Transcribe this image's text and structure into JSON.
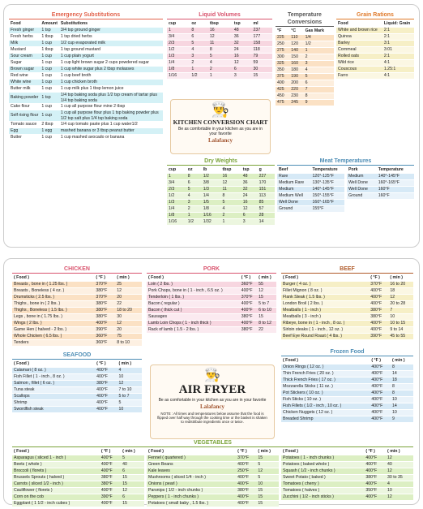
{
  "conversion_chart": {
    "emergency_substitutions": {
      "title": "Emergency Substitutions",
      "columns": [
        "Food",
        "Amount",
        "Substitutions"
      ],
      "rows": [
        [
          "Fresh ginger",
          "1 tsp",
          "3/4 tsp ground ginger"
        ],
        [
          "Fresh herbs",
          "1 tbsp",
          "1 tsp dried herbs"
        ],
        [
          "Milk",
          "1 cup",
          "1/2 cup evaporated milk"
        ],
        [
          "Mustard",
          "1 tbsp",
          "1 tsp ground mustard"
        ],
        [
          "Sour cream",
          "1 cup",
          "1 cup plain yogurt"
        ],
        [
          "Sugar",
          "1 cup",
          "1 cup light brown sugar 2 cups powdered sugar"
        ],
        [
          "Brown sugar",
          "1 cup",
          "1 cup white sugar plus 2 tbsp molasses"
        ],
        [
          "Red wine",
          "1 cup",
          "1 cup beef broth"
        ],
        [
          "White wine",
          "1 cup",
          "1 cup chicken broth"
        ],
        [
          "Butter milk",
          "1 cup",
          "1 cup milk plus 1 tbsp lemon juice"
        ],
        [
          "Baking powder",
          "1 tsp",
          "1/4 tsp baking soda plus 1/2 tsp cream of tartar plus 1/4 tsp baking soda"
        ],
        [
          "Cake flour",
          "1 cup",
          "1 cup all purpose flour mine 2 tbsp"
        ],
        [
          "Self rising flour",
          "1 cup",
          "1 cup all purpose flour plus 1 tsp baking powder plus 1/2 tsp salt plus 1/4 tsp baking soda"
        ],
        [
          "Tomato sauce",
          "2 tbsp",
          "1/4 cup tomato paste plus 1 cup water1/2"
        ],
        [
          "Egg",
          "1 egg",
          "mashed banana or 3 tbsp peanut butter"
        ],
        [
          "Butter",
          "1 cup",
          "1 cup mashed avocado or banana"
        ]
      ]
    },
    "liquid_volumes": {
      "title": "Liquid Volumes",
      "columns": [
        "cup",
        "oz",
        "tbsp",
        "tsp",
        "ml"
      ],
      "rows": [
        [
          "1",
          "8",
          "16",
          "48",
          "237"
        ],
        [
          "3/4",
          "6",
          "12",
          "36",
          "177"
        ],
        [
          "2/3",
          "5",
          "11",
          "32",
          "158"
        ],
        [
          "1/2",
          "4",
          "8",
          "24",
          "118"
        ],
        [
          "1/3",
          "3",
          "5",
          "16",
          "79"
        ],
        [
          "1/4",
          "2",
          "4",
          "12",
          "59"
        ],
        [
          "1/8",
          "1",
          "2",
          "6",
          "30"
        ],
        [
          "1/16",
          "1/2",
          "1",
          "3",
          "15"
        ]
      ]
    },
    "temperature_conversions": {
      "title": "Temperature Conversions",
      "columns": [
        "°F",
        "°C",
        "Gas Mark"
      ],
      "rows": [
        [
          "225",
          "110",
          "1/4"
        ],
        [
          "250",
          "120",
          "1/2"
        ],
        [
          "275",
          "140",
          "1"
        ],
        [
          "300",
          "150",
          "2"
        ],
        [
          "325",
          "160",
          "3"
        ],
        [
          "350",
          "180",
          "4"
        ],
        [
          "375",
          "190",
          "5"
        ],
        [
          "400",
          "200",
          "6"
        ],
        [
          "425",
          "220",
          "7"
        ],
        [
          "450",
          "230",
          "8"
        ],
        [
          "475",
          "245",
          "9"
        ]
      ]
    },
    "grain_rations": {
      "title": "Grain Rations",
      "columns": [
        "Food",
        "Liquid: Grain"
      ],
      "rows": [
        [
          "White and brown rice",
          "2:1"
        ],
        [
          "Quinoa",
          "2:1"
        ],
        [
          "Barley",
          "3:1"
        ],
        [
          "Cornmeal",
          "3:01"
        ],
        [
          "Rolled oats",
          "2:1"
        ],
        [
          "Wild rice",
          "4:1"
        ],
        [
          "Couscous",
          "1.25:1"
        ],
        [
          "Farro",
          "4:1"
        ]
      ]
    },
    "center": {
      "title": "KITCHEN CONVERSION CHART",
      "tagline": "Be as comfortable in your kitchen as you are in your favorite",
      "brand": "Lalafancy"
    },
    "dry_weights": {
      "title": "Dry Weights",
      "columns": [
        "cup",
        "oz",
        "lb",
        "tbsp",
        "tsp",
        "g"
      ],
      "rows": [
        [
          "1",
          "8",
          "1/2",
          "16",
          "48",
          "227"
        ],
        [
          "3/4",
          "6",
          "3/8",
          "12",
          "36",
          "170"
        ],
        [
          "2/3",
          "5",
          "1/3",
          "11",
          "32",
          "151"
        ],
        [
          "1/2",
          "4",
          "1/4",
          "8",
          "24",
          "113"
        ],
        [
          "1/3",
          "3",
          "1/5",
          "5",
          "16",
          "85"
        ],
        [
          "1/4",
          "2",
          "1/8",
          "4",
          "12",
          "57"
        ],
        [
          "1/8",
          "1",
          "1/16",
          "2",
          "6",
          "28"
        ],
        [
          "1/16",
          "1/2",
          "1/32",
          "1",
          "3",
          "14"
        ]
      ]
    },
    "meat_temperatures": {
      "title": "Meat Temperatures",
      "tables": [
        {
          "columns": [
            "Beef",
            "Temperature"
          ],
          "rows": [
            [
              "Rare",
              "120°-125°F"
            ],
            [
              "Medium Rare",
              "130°-135°F"
            ],
            [
              "Medium",
              "140°-145°F"
            ],
            [
              "Medium Well",
              "150°-155°F"
            ],
            [
              "Well Done",
              "160°-165°F"
            ],
            [
              "Ground",
              "155°F"
            ]
          ]
        },
        {
          "columns": [
            "Pork",
            "Temperature"
          ],
          "rows": [
            [
              "Medium",
              "140°-145°F"
            ],
            [
              "Well Done",
              "160°-165°F"
            ],
            [
              "Well Done",
              "160°F"
            ],
            [
              "Ground",
              "160°F"
            ]
          ]
        }
      ]
    }
  },
  "air_fryer": {
    "chicken": {
      "title": "CHICKEN",
      "columns": [
        "( Food )",
        "( °F )",
        "( min )"
      ],
      "rows": [
        [
          "Breasts , bone in ( 1.25 lbs. )",
          "370°F",
          "25"
        ],
        [
          "Breasts , Boneless ( 4 oz. )",
          "380°F",
          "12"
        ],
        [
          "Drumsticks ( 2.5 lbs. )",
          "370°F",
          "20"
        ],
        [
          "Thighs , bone in ( 2 lbs. )",
          "380°F",
          "22"
        ],
        [
          "Thighs , Boneless ( 1.5 lbs. )",
          "380°F",
          "18 to 20"
        ],
        [
          "Legs , bone in ( 1.75 lbs. )",
          "380°F",
          "30"
        ],
        [
          "Wings ( 2 lbs. )",
          "400°F",
          "12"
        ],
        [
          "Game Hen ( halved - 2 lbs. )",
          "390°F",
          "20"
        ],
        [
          "Whole Chicken ( 6.5 lbs. )",
          "360°F",
          "75"
        ],
        [
          "Tenders",
          "360°F",
          "8 to 10"
        ]
      ]
    },
    "pork": {
      "title": "PORK",
      "columns": [
        "( Food )",
        "( °F )",
        "( min )"
      ],
      "rows": [
        [
          "Loin ( 2 lbs. )",
          "360°F",
          "55"
        ],
        [
          "Pork Chops, bone in ( 1 - inch , 6.5 oz. )",
          "400°F",
          "12"
        ],
        [
          "Tenderloin ( 1 lbs. )",
          "370°F",
          "15"
        ],
        [
          "Bacon ( regular )",
          "400°F",
          "5 to 7"
        ],
        [
          "Bacon ( thick cut )",
          "400°F",
          "6 to 10"
        ],
        [
          "Sausages",
          "380°F",
          "15"
        ],
        [
          "Lamb Loin Chops ( 1 - inch thick )",
          "400°F",
          "8 to 12"
        ],
        [
          "Rack of lamb ( 1.5 - 2 lbs. )",
          "380°F",
          "22"
        ]
      ]
    },
    "beef": {
      "title": "BEEF",
      "columns": [
        "( Food )",
        "( °F )",
        "( min )"
      ],
      "rows": [
        [
          "Burger ( 4 oz. )",
          "370°F",
          "16 to 20"
        ],
        [
          "Fillet Mignon ( 8 oz. )",
          "400°F",
          "18"
        ],
        [
          "Flank Steak ( 1.5 lbs. )",
          "400°F",
          "12"
        ],
        [
          "London Broil ( 2 lbs. )",
          "400°F",
          "20 to 28"
        ],
        [
          "Meatballs ( 1 - inch )",
          "380°F",
          "7"
        ],
        [
          "Meatballs ( 3 - inch )",
          "380°F",
          "10"
        ],
        [
          "Ribeye, bone in ( 1 - inch , 8 oz. )",
          "400°F",
          "10 to 15"
        ],
        [
          "Sirloin steaks ( 1 - inch , 12 oz. )",
          "400°F",
          "9 to 14"
        ],
        [
          "Beef Eye Round Roast ( 4 lbs. )",
          "390°F",
          "45 to 55"
        ]
      ]
    },
    "seafood": {
      "title": "SEAFOOD",
      "columns": [
        "( Food )",
        "( °F )",
        "( min )"
      ],
      "rows": [
        [
          "Calamari ( 8 oz. )",
          "400°F",
          "4"
        ],
        [
          "Fish Fillet ( 1 - inch , 8 oz. )",
          "400°F",
          "10"
        ],
        [
          "Salmon , fillet ( 6 oz. )",
          "380°F",
          "12"
        ],
        [
          "Tuna steak",
          "400°F",
          "7 to 10"
        ],
        [
          "Scallops",
          "400°F",
          "5 to 7"
        ],
        [
          "Shrimp",
          "400°F",
          "5"
        ],
        [
          "Swordfish steak",
          "400°F",
          "10"
        ]
      ]
    },
    "frozen_food": {
      "title": "Frozen Food",
      "columns": [
        "( Food )",
        "( °F )",
        "( min )"
      ],
      "rows": [
        [
          "Onion Rings ( 12 oz. )",
          "400°F",
          "8"
        ],
        [
          "Thin French Fries ( 20 oz. )",
          "400°F",
          "14"
        ],
        [
          "Thick French Fries ( 17 oz. )",
          "400°F",
          "18"
        ],
        [
          "Mozzarella Sticks ( 11 oz. )",
          "400°F",
          "8"
        ],
        [
          "Pot Stickers ( 10 oz. )",
          "400°F",
          "8"
        ],
        [
          "Fish Sticks ( 10 oz. )",
          "400°F",
          "10"
        ],
        [
          "Fish Fillets ( 1/2 - inch , 10 oz. )",
          "400°F",
          "14"
        ],
        [
          "Chicken Nuggets ( 12 oz. )",
          "400°F",
          "10"
        ],
        [
          "Breaded Shrimp",
          "400°F",
          "9"
        ]
      ]
    },
    "center": {
      "title": "AIR FRYER",
      "tagline": "Be as comfortable in your kitchen as you are in your favorite",
      "brand": "Lalafancy",
      "note": "NOTE : All times and temperatures below assume that the food is flipped over half way through the cooking time or the basket is shaken to redistribute ingredients once or twice."
    },
    "vegetables": {
      "title": "VEGETABLES",
      "tables": [
        {
          "columns": [
            "( Food )",
            "( °F )",
            "( min )"
          ],
          "rows": [
            [
              "Asparagus ( sliced 1 - inch )",
              "400°F",
              "5"
            ],
            [
              "Beets ( whole )",
              "400°F",
              "40"
            ],
            [
              "Broccoli ( florets )",
              "400°F",
              "6"
            ],
            [
              "Brussels Sprouts ( halved )",
              "380°F",
              "15"
            ],
            [
              "Carrots ( sliced 1/2 - inch )",
              "380°F",
              "15"
            ],
            [
              "Cauliflower ( florets )",
              "400°F",
              "12"
            ],
            [
              "Corn on the cob",
              "390°F",
              "6"
            ],
            [
              "Eggplant ( 1 1/2 - inch cubes )",
              "400°F",
              "15"
            ]
          ]
        },
        {
          "columns": [
            "( Food )",
            "( °F )",
            "( min )"
          ],
          "rows": [
            [
              "Fennel ( quartered )",
              "370°F",
              "15"
            ],
            [
              "Green Beans",
              "400°F",
              "5"
            ],
            [
              "Kale leaves",
              "250°F",
              "12"
            ],
            [
              "Mushrooms ( sliced 1/4 - inch )",
              "400°F",
              "5"
            ],
            [
              "Onions ( pearl )",
              "400°F",
              "10"
            ],
            [
              "Parsnips ( 1/2 - inch chunks )",
              "380°F",
              "15"
            ],
            [
              "Peppers ( 1 - inch chunks )",
              "400°F",
              "15"
            ],
            [
              "Potatoes ( small baby , 1.5 lbs. )",
              "400°F",
              "15"
            ]
          ]
        },
        {
          "columns": [
            "( Food )",
            "( °F )",
            "( min )"
          ],
          "rows": [
            [
              "Potatoes ( 1 - inch chunks )",
              "400°F",
              "12"
            ],
            [
              "Potatoes ( baked whole )",
              "400°F",
              "40"
            ],
            [
              "Squash ( 1/2 - inch chunks )",
              "400°F",
              "12"
            ],
            [
              "Sweet Potato ( baked )",
              "380°F",
              "30 to 35"
            ],
            [
              "Tomatoes ( cherry )",
              "400°F",
              "4"
            ],
            [
              "Tomatoes ( halves )",
              "350°F",
              "10"
            ],
            [
              "Zucchini ( 1/2 - inch sticks )",
              "400°F",
              "12"
            ]
          ]
        }
      ]
    }
  }
}
